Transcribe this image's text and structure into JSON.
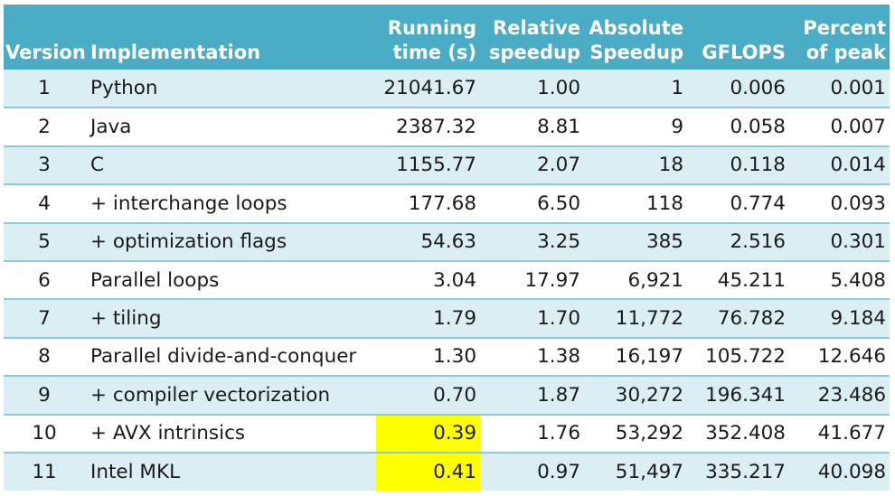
{
  "table": {
    "headers": {
      "version": "Version",
      "implementation": "Implementation",
      "running_time_l1": "Running",
      "running_time_l2": "time (s)",
      "relative_l1": "Relative",
      "relative_l2": "speedup",
      "absolute_l1": "Absolute",
      "absolute_l2": "Speedup",
      "gflops": "GFLOPS",
      "peak_l1": "Percent",
      "peak_l2": "of peak"
    },
    "rows": [
      {
        "version": "1",
        "implementation": "Python",
        "time": "21041.67",
        "relative": "1.00",
        "absolute": "1",
        "gflops": "0.006",
        "peak": "0.001"
      },
      {
        "version": "2",
        "implementation": "Java",
        "time": "2387.32",
        "relative": "8.81",
        "absolute": "9",
        "gflops": "0.058",
        "peak": "0.007"
      },
      {
        "version": "3",
        "implementation": "C",
        "time": "1155.77",
        "relative": "2.07",
        "absolute": "18",
        "gflops": "0.118",
        "peak": "0.014"
      },
      {
        "version": "4",
        "implementation": "+ interchange loops",
        "time": "177.68",
        "relative": "6.50",
        "absolute": "118",
        "gflops": "0.774",
        "peak": "0.093"
      },
      {
        "version": "5",
        "implementation": "+ optimization flags",
        "time": "54.63",
        "relative": "3.25",
        "absolute": "385",
        "gflops": "2.516",
        "peak": "0.301"
      },
      {
        "version": "6",
        "implementation": "Parallel loops",
        "time": "3.04",
        "relative": "17.97",
        "absolute": "6,921",
        "gflops": "45.211",
        "peak": "5.408"
      },
      {
        "version": "7",
        "implementation": "+ tiling",
        "time": "1.79",
        "relative": "1.70",
        "absolute": "11,772",
        "gflops": "76.782",
        "peak": "9.184"
      },
      {
        "version": "8",
        "implementation": "Parallel divide-and-conquer",
        "time": "1.30",
        "relative": "1.38",
        "absolute": "16,197",
        "gflops": "105.722",
        "peak": "12.646"
      },
      {
        "version": "9",
        "implementation": "+ compiler vectorization",
        "time": "0.70",
        "relative": "1.87",
        "absolute": "30,272",
        "gflops": "196.341",
        "peak": "23.486"
      },
      {
        "version": "10",
        "implementation": "+ AVX intrinsics",
        "time": "0.39",
        "relative": "1.76",
        "absolute": "53,292",
        "gflops": "352.408",
        "peak": "41.677"
      },
      {
        "version": "11",
        "implementation": "Intel MKL",
        "time": "0.41",
        "relative": "0.97",
        "absolute": "51,497",
        "gflops": "335.217",
        "peak": "40.098"
      }
    ]
  },
  "colors": {
    "header_bg": "#4bacc6",
    "alt_row_bg": "#dbeef4",
    "highlight": "#ffff00"
  }
}
